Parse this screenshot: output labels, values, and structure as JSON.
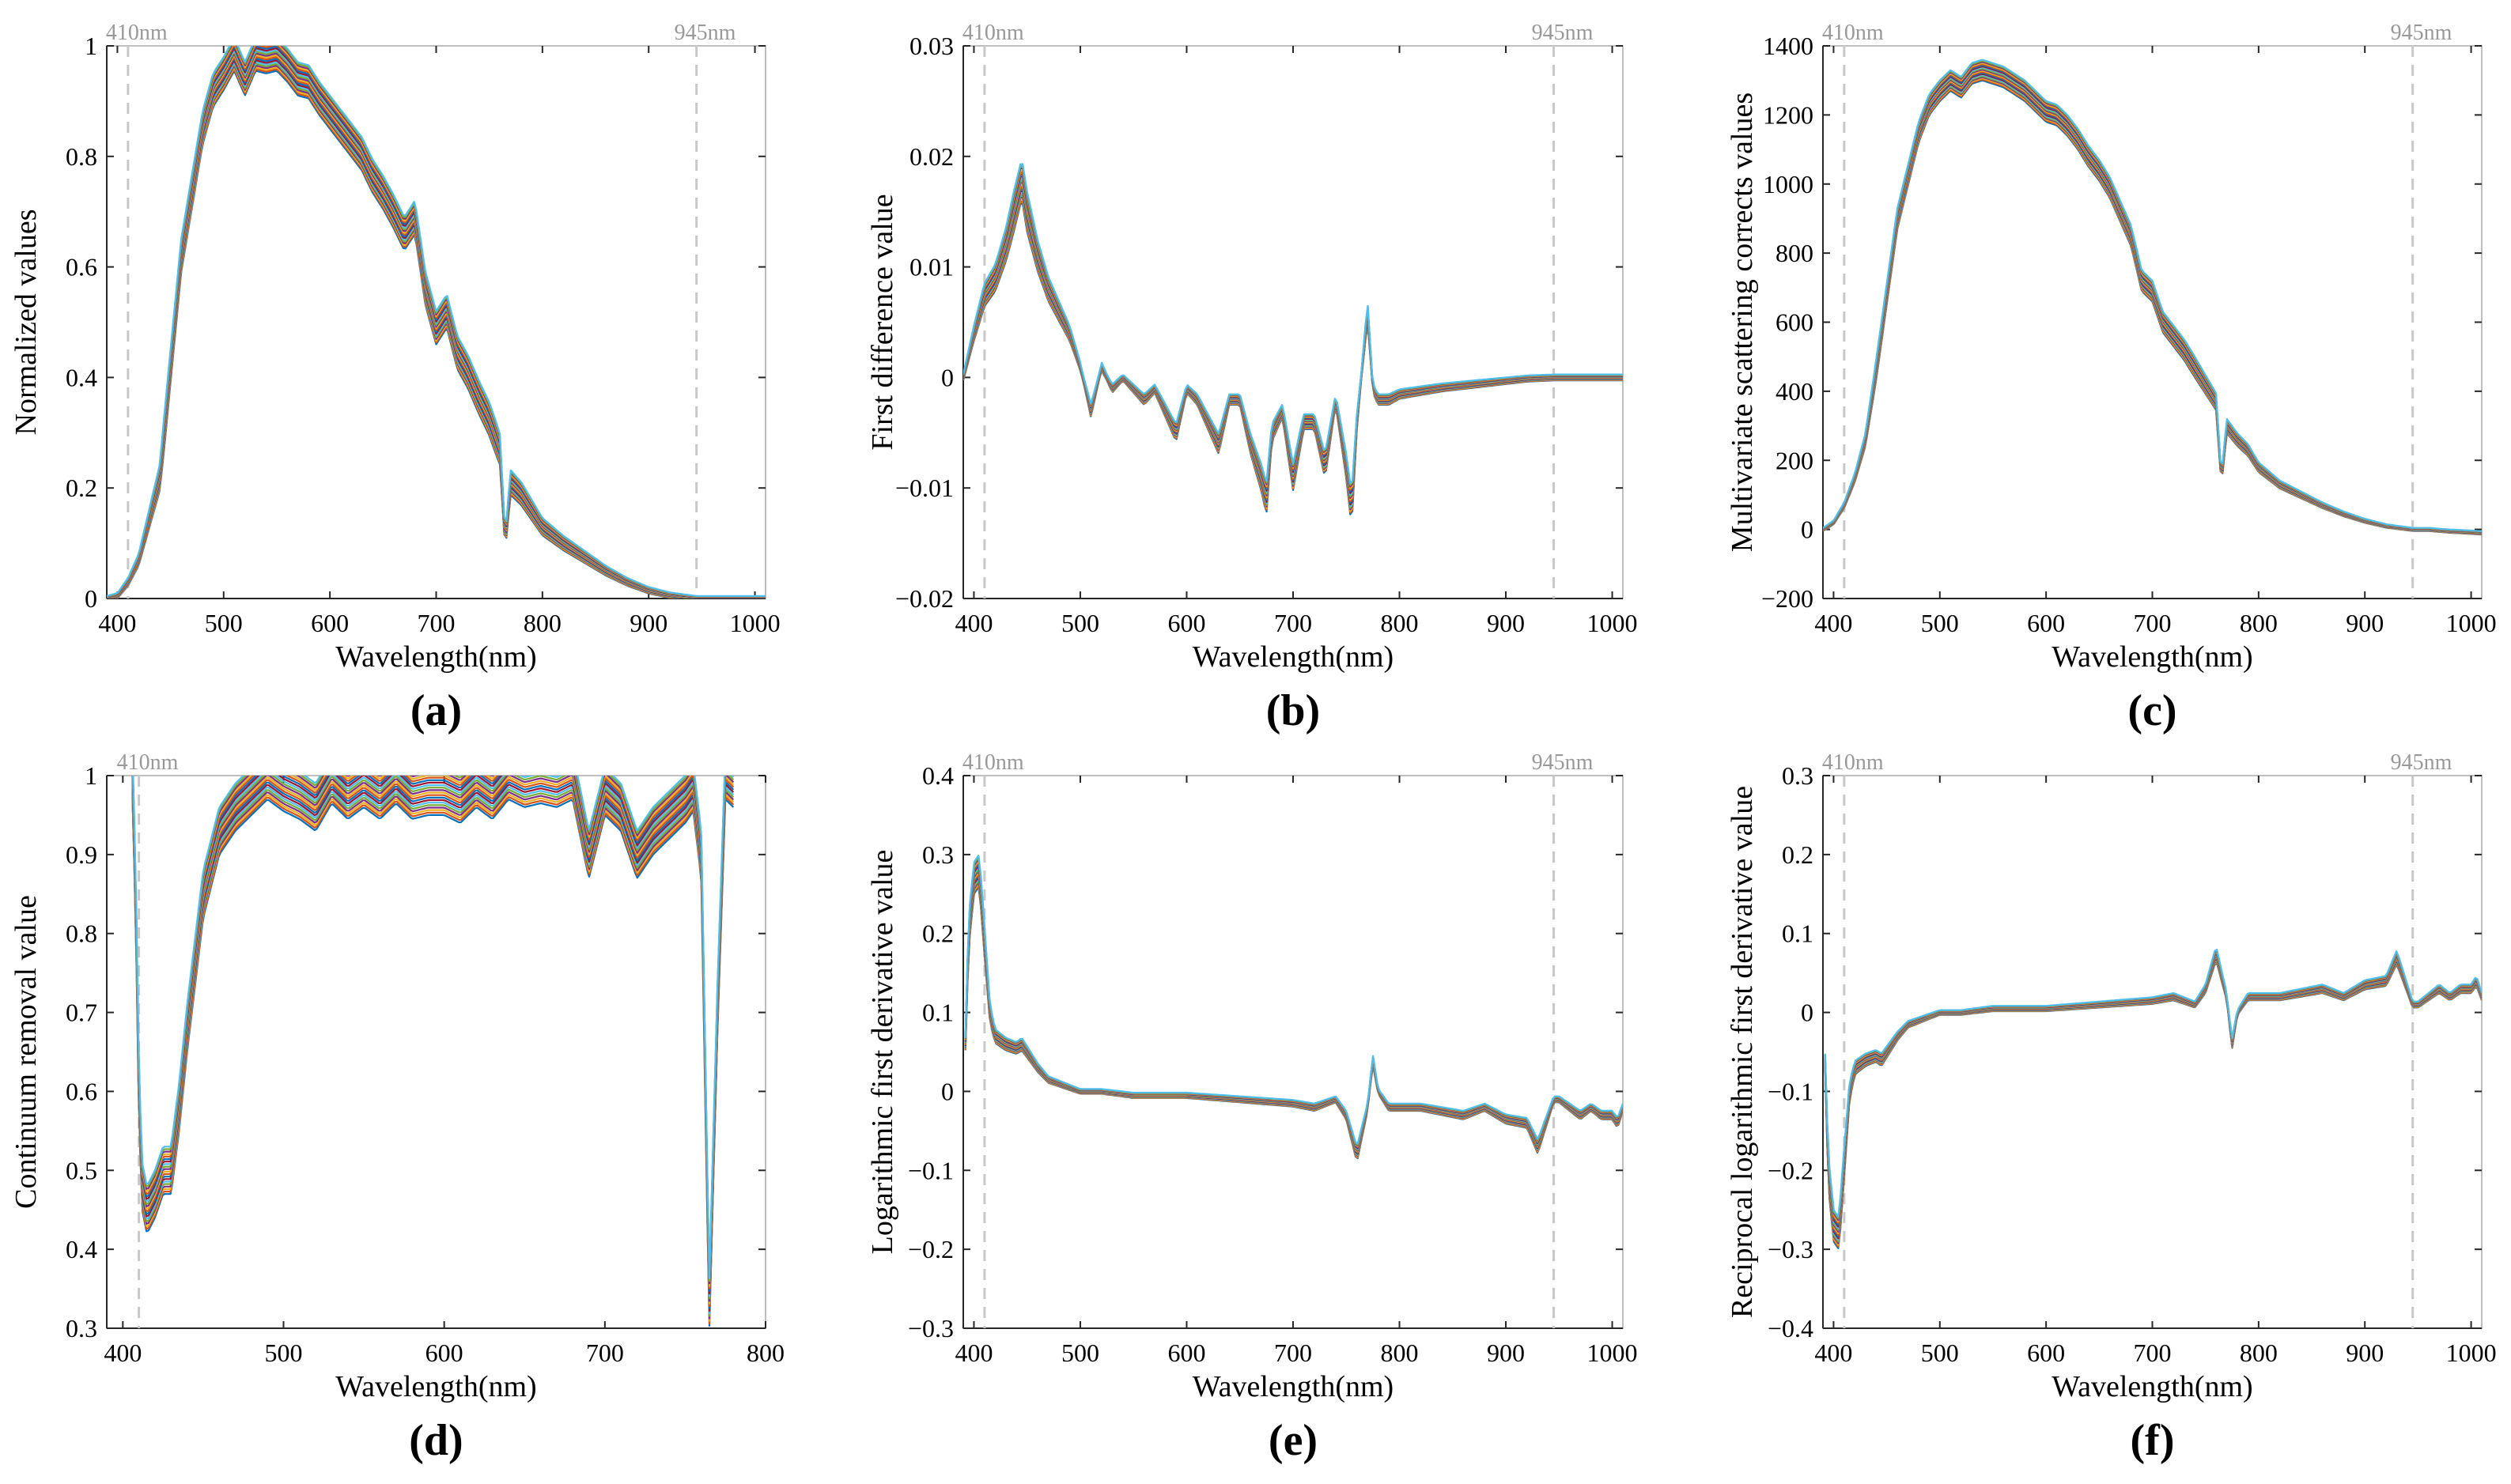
{
  "chart_data": [
    {
      "id": "a",
      "type": "line",
      "panel_label": "(a)",
      "title": "",
      "xlabel": "Wavelength(nm)",
      "ylabel": "Normalized values",
      "xlim": [
        390,
        1010
      ],
      "ylim": [
        0,
        1
      ],
      "xticks": [
        400,
        500,
        600,
        700,
        800,
        900,
        1000
      ],
      "xtick_labels": [
        "400",
        "500",
        "600",
        "700",
        "800",
        "900",
        "1000"
      ],
      "yticks": [
        0,
        0.2,
        0.4,
        0.6,
        0.8,
        1
      ],
      "ytick_labels": [
        "0",
        "0.2",
        "0.4",
        "0.6",
        "0.8",
        "1"
      ],
      "markers": [
        {
          "x": 410,
          "label": "410nm"
        },
        {
          "x": 945,
          "label": "945nm"
        }
      ],
      "series_count": 20,
      "spread": 0.03,
      "x": [
        390,
        400,
        410,
        420,
        440,
        460,
        480,
        490,
        500,
        510,
        520,
        530,
        540,
        550,
        560,
        570,
        580,
        590,
        600,
        610,
        620,
        630,
        640,
        650,
        660,
        670,
        680,
        690,
        700,
        710,
        720,
        730,
        740,
        750,
        760,
        765,
        770,
        780,
        790,
        800,
        820,
        840,
        860,
        880,
        900,
        920,
        945,
        960,
        980,
        1000,
        1010
      ],
      "values": [
        0,
        0.005,
        0.03,
        0.07,
        0.22,
        0.62,
        0.85,
        0.92,
        0.95,
        0.985,
        0.94,
        0.985,
        0.98,
        0.985,
        0.965,
        0.94,
        0.935,
        0.905,
        0.88,
        0.855,
        0.83,
        0.805,
        0.765,
        0.735,
        0.7,
        0.66,
        0.69,
        0.56,
        0.49,
        0.52,
        0.445,
        0.41,
        0.365,
        0.325,
        0.27,
        0.1,
        0.21,
        0.19,
        0.16,
        0.13,
        0.1,
        0.075,
        0.05,
        0.03,
        0.015,
        0.006,
        0,
        0,
        0,
        0,
        0
      ]
    },
    {
      "id": "b",
      "type": "line",
      "panel_label": "(b)",
      "title": "",
      "xlabel": "Wavelength(nm)",
      "ylabel": "First difference value",
      "xlim": [
        390,
        1010
      ],
      "ylim": [
        -0.02,
        0.03
      ],
      "xticks": [
        400,
        500,
        600,
        700,
        800,
        900,
        1000
      ],
      "xtick_labels": [
        "400",
        "500",
        "600",
        "700",
        "800",
        "900",
        "1000"
      ],
      "yticks": [
        -0.02,
        -0.01,
        0,
        0.01,
        0.02,
        0.03
      ],
      "ytick_labels": [
        "−0.02",
        "−0.01",
        "0",
        "0.01",
        "0.02",
        "0.03"
      ],
      "markers": [
        {
          "x": 410,
          "label": "410nm"
        },
        {
          "x": 945,
          "label": "945nm"
        }
      ],
      "series_count": 20,
      "spread": 0.0018,
      "x": [
        390,
        400,
        410,
        420,
        430,
        440,
        445,
        450,
        460,
        470,
        480,
        490,
        500,
        510,
        520,
        530,
        540,
        550,
        560,
        570,
        580,
        590,
        600,
        610,
        620,
        630,
        640,
        650,
        660,
        670,
        675,
        680,
        690,
        700,
        710,
        720,
        730,
        740,
        750,
        755,
        760,
        770,
        775,
        780,
        790,
        800,
        820,
        840,
        860,
        880,
        900,
        920,
        945,
        960,
        980,
        1000,
        1010
      ],
      "values": [
        0,
        0.004,
        0.0075,
        0.009,
        0.012,
        0.016,
        0.018,
        0.015,
        0.011,
        0.008,
        0.006,
        0.004,
        0.001,
        -0.003,
        0.001,
        -0.001,
        0,
        -0.001,
        -0.002,
        -0.001,
        -0.003,
        -0.005,
        -0.001,
        -0.002,
        -0.004,
        -0.006,
        -0.002,
        -0.002,
        -0.006,
        -0.009,
        -0.011,
        -0.005,
        -0.003,
        -0.009,
        -0.004,
        -0.004,
        -0.008,
        -0.002,
        -0.008,
        -0.012,
        -0.004,
        0.006,
        -0.001,
        -0.002,
        -0.002,
        -0.0015,
        -0.0012,
        -0.0009,
        -0.0007,
        -0.0005,
        -0.0003,
        -0.0001,
        0,
        0,
        0,
        0,
        0
      ]
    },
    {
      "id": "c",
      "type": "line",
      "panel_label": "(c)",
      "title": "",
      "xlabel": "Wavelength(nm)",
      "ylabel": "Multivariate scattering corrects values",
      "xlim": [
        390,
        1010
      ],
      "ylim": [
        -200,
        1400
      ],
      "xticks": [
        400,
        500,
        600,
        700,
        800,
        900,
        1000
      ],
      "xtick_labels": [
        "400",
        "500",
        "600",
        "700",
        "800",
        "900",
        "1000"
      ],
      "yticks": [
        -200,
        0,
        200,
        400,
        600,
        800,
        1000,
        1200,
        1400
      ],
      "ytick_labels": [
        "−200",
        "0",
        "200",
        "400",
        "600",
        "800",
        "1000",
        "1200",
        "1400"
      ],
      "markers": [
        {
          "x": 410,
          "label": "410nm"
        },
        {
          "x": 945,
          "label": "945nm"
        }
      ],
      "series_count": 20,
      "spread": 30,
      "x": [
        390,
        400,
        410,
        420,
        430,
        440,
        460,
        480,
        490,
        500,
        510,
        520,
        530,
        540,
        550,
        560,
        570,
        580,
        590,
        600,
        610,
        620,
        630,
        640,
        650,
        660,
        670,
        680,
        690,
        700,
        710,
        720,
        730,
        740,
        750,
        760,
        765,
        770,
        780,
        790,
        800,
        820,
        840,
        860,
        880,
        900,
        920,
        945,
        960,
        980,
        1000,
        1010
      ],
      "values": [
        0,
        20,
        70,
        150,
        260,
        460,
        900,
        1150,
        1230,
        1270,
        1300,
        1280,
        1320,
        1330,
        1320,
        1310,
        1290,
        1270,
        1240,
        1210,
        1200,
        1170,
        1130,
        1080,
        1040,
        990,
        920,
        850,
        720,
        690,
        600,
        560,
        520,
        470,
        420,
        370,
        140,
        300,
        260,
        230,
        180,
        130,
        100,
        70,
        45,
        25,
        10,
        0,
        0,
        -5,
        -8,
        -10
      ]
    },
    {
      "id": "d",
      "type": "line",
      "panel_label": "(d)",
      "title": "",
      "xlabel": "Wavelength(nm)",
      "ylabel": "Continuum removal value",
      "xlim": [
        390,
        800
      ],
      "ylim": [
        0.3,
        1
      ],
      "xticks": [
        400,
        500,
        600,
        700,
        800
      ],
      "xtick_labels": [
        "400",
        "500",
        "600",
        "700",
        "800"
      ],
      "yticks": [
        0.3,
        0.4,
        0.5,
        0.6,
        0.7,
        0.8,
        0.9,
        1
      ],
      "ytick_labels": [
        "0.3",
        "0.4",
        "0.5",
        "0.6",
        "0.7",
        "0.8",
        "0.9",
        "1"
      ],
      "markers": [
        {
          "x": 410,
          "label": "410nm"
        }
      ],
      "series_count": 20,
      "spread": 0.03,
      "x": [
        406,
        408,
        410,
        412,
        415,
        420,
        425,
        430,
        435,
        440,
        450,
        460,
        470,
        480,
        490,
        500,
        510,
        520,
        530,
        540,
        550,
        560,
        570,
        580,
        590,
        600,
        610,
        620,
        630,
        640,
        650,
        660,
        670,
        680,
        690,
        700,
        710,
        720,
        730,
        740,
        750,
        755,
        760,
        765,
        770,
        775,
        780
      ],
      "values": [
        1,
        0.85,
        0.6,
        0.48,
        0.45,
        0.47,
        0.5,
        0.5,
        0.58,
        0.68,
        0.85,
        0.93,
        0.96,
        0.98,
        1,
        0.985,
        0.975,
        0.96,
        0.995,
        0.975,
        0.99,
        0.975,
        0.995,
        0.975,
        0.98,
        0.98,
        0.97,
        0.99,
        0.975,
        1,
        0.99,
        0.995,
        0.99,
        1,
        0.9,
        0.98,
        0.96,
        0.9,
        0.93,
        0.95,
        0.97,
        0.985,
        0.9,
        0.33,
        0.7,
        1,
        0.99
      ]
    },
    {
      "id": "e",
      "type": "line",
      "panel_label": "(e)",
      "title": "",
      "xlabel": "Wavelength(nm)",
      "ylabel": "Logarithmic first derivative value",
      "xlim": [
        390,
        1010
      ],
      "ylim": [
        -0.3,
        0.4
      ],
      "xticks": [
        400,
        500,
        600,
        700,
        800,
        900,
        1000
      ],
      "xtick_labels": [
        "400",
        "500",
        "600",
        "700",
        "800",
        "900",
        "1000"
      ],
      "yticks": [
        -0.3,
        -0.2,
        -0.1,
        0,
        0.1,
        0.2,
        0.3,
        0.4
      ],
      "ytick_labels": [
        "−0.3",
        "−0.2",
        "−0.1",
        "0",
        "0.1",
        "0.2",
        "0.3",
        "0.4"
      ],
      "markers": [
        {
          "x": 410,
          "label": "410nm"
        },
        {
          "x": 945,
          "label": "945nm"
        }
      ],
      "series_count": 20,
      "spread": 0.02,
      "x": [
        392,
        395,
        400,
        405,
        410,
        415,
        420,
        430,
        440,
        445,
        450,
        460,
        470,
        480,
        500,
        520,
        550,
        600,
        650,
        700,
        720,
        740,
        750,
        760,
        770,
        775,
        780,
        790,
        800,
        820,
        840,
        860,
        880,
        900,
        920,
        930,
        940,
        945,
        950,
        960,
        970,
        980,
        990,
        1000,
        1005,
        1010
      ],
      "values": [
        0.06,
        0.2,
        0.27,
        0.28,
        0.19,
        0.1,
        0.07,
        0.06,
        0.055,
        0.06,
        0.05,
        0.03,
        0.015,
        0.01,
        0,
        0,
        -0.005,
        -0.005,
        -0.01,
        -0.015,
        -0.02,
        -0.01,
        -0.03,
        -0.08,
        -0.02,
        0.04,
        0,
        -0.02,
        -0.02,
        -0.02,
        -0.025,
        -0.03,
        -0.02,
        -0.035,
        -0.04,
        -0.07,
        -0.03,
        -0.01,
        -0.01,
        -0.02,
        -0.03,
        -0.02,
        -0.03,
        -0.03,
        -0.04,
        -0.02
      ]
    },
    {
      "id": "f",
      "type": "line",
      "panel_label": "(f)",
      "title": "",
      "xlabel": "Wavelength(nm)",
      "ylabel": "Reciprocal logarithmic first derivative value",
      "xlim": [
        390,
        1010
      ],
      "ylim": [
        -0.4,
        0.3
      ],
      "xticks": [
        400,
        500,
        600,
        700,
        800,
        900,
        1000
      ],
      "xtick_labels": [
        "400",
        "500",
        "600",
        "700",
        "800",
        "900",
        "1000"
      ],
      "yticks": [
        -0.4,
        -0.3,
        -0.2,
        -0.1,
        0,
        0.1,
        0.2,
        0.3
      ],
      "ytick_labels": [
        "−0.4",
        "−0.3",
        "−0.2",
        "−0.1",
        "0",
        "0.1",
        "0.2",
        "0.3"
      ],
      "markers": [
        {
          "x": 410,
          "label": "410nm"
        },
        {
          "x": 945,
          "label": "945nm"
        }
      ],
      "series_count": 20,
      "spread": 0.02,
      "x": [
        392,
        395,
        400,
        405,
        410,
        415,
        420,
        430,
        440,
        445,
        450,
        460,
        470,
        480,
        500,
        520,
        550,
        600,
        650,
        700,
        720,
        740,
        750,
        760,
        770,
        775,
        780,
        790,
        800,
        820,
        840,
        860,
        880,
        900,
        920,
        930,
        940,
        945,
        950,
        960,
        970,
        980,
        990,
        1000,
        1005,
        1010
      ],
      "values": [
        -0.06,
        -0.2,
        -0.27,
        -0.28,
        -0.19,
        -0.1,
        -0.07,
        -0.06,
        -0.055,
        -0.06,
        -0.05,
        -0.03,
        -0.015,
        -0.01,
        0,
        0,
        0.005,
        0.005,
        0.01,
        0.015,
        0.02,
        0.01,
        0.03,
        0.075,
        0.02,
        -0.04,
        0,
        0.02,
        0.02,
        0.02,
        0.025,
        0.03,
        0.02,
        0.035,
        0.04,
        0.07,
        0.03,
        0.01,
        0.01,
        0.02,
        0.03,
        0.02,
        0.03,
        0.03,
        0.04,
        0.02
      ]
    }
  ],
  "colors": {
    "series": [
      "#0072bd",
      "#d95319",
      "#edb120",
      "#7e2f8e",
      "#77ac30",
      "#4dbeee",
      "#a2142f"
    ],
    "marker_line": "#c8c8c8",
    "marker_text": "#999999",
    "axis": "#262626",
    "frame": "#bfbfbf"
  }
}
